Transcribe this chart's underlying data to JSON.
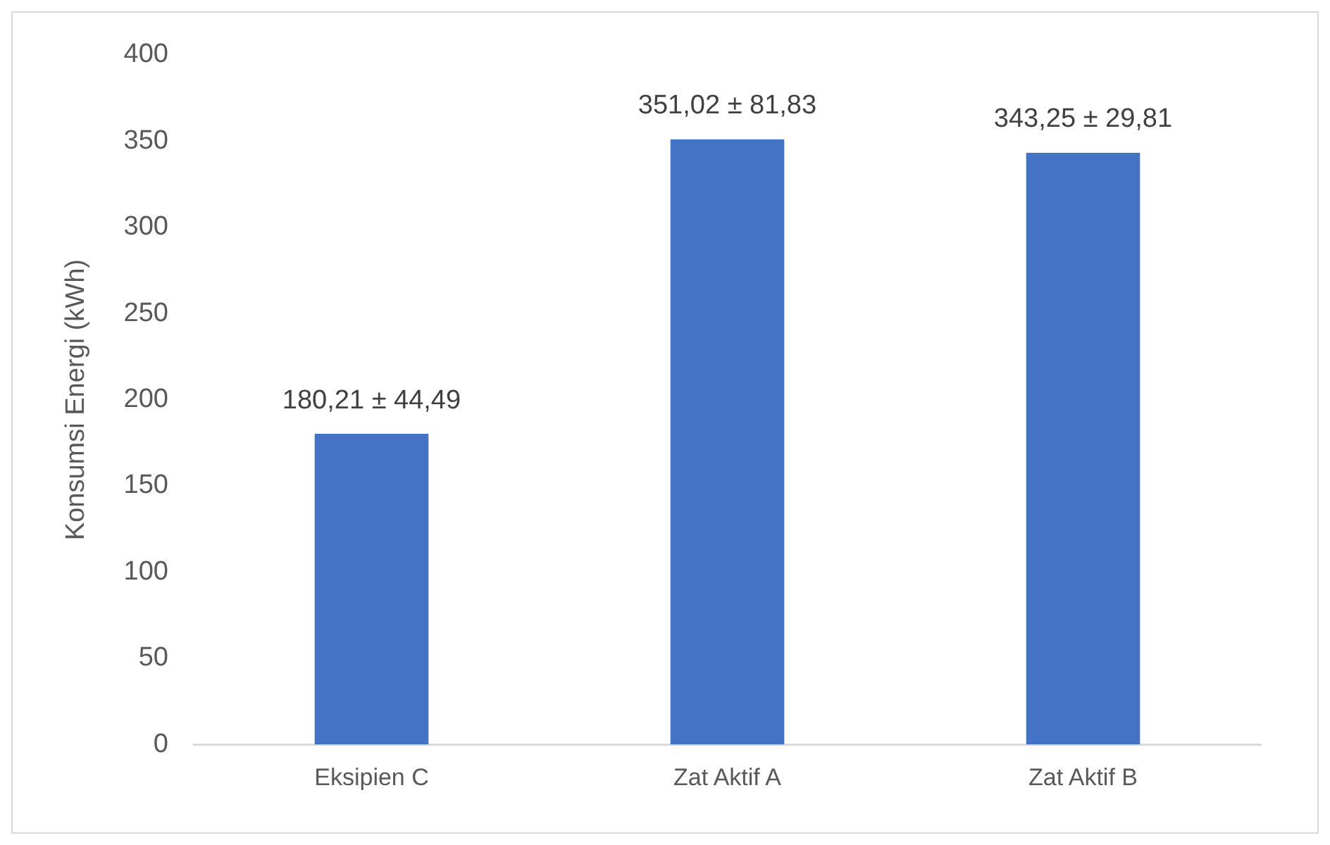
{
  "chart_data": {
    "type": "bar",
    "ylabel": "Konsumsi Energi (kWh)",
    "categories": [
      "Eksipien C",
      "Zat Aktif A",
      "Zat Aktif B"
    ],
    "values": [
      180.21,
      351.02,
      343.25
    ],
    "value_labels": [
      "180,21 ± 44,49",
      "351,02 ± 81,83",
      "343,25 ± 29,81"
    ],
    "color": "#4472c4",
    "ylim": [
      0,
      400
    ],
    "yticks": [
      0,
      50,
      100,
      150,
      200,
      250,
      300,
      350,
      400
    ],
    "grid": false,
    "legend": false
  }
}
